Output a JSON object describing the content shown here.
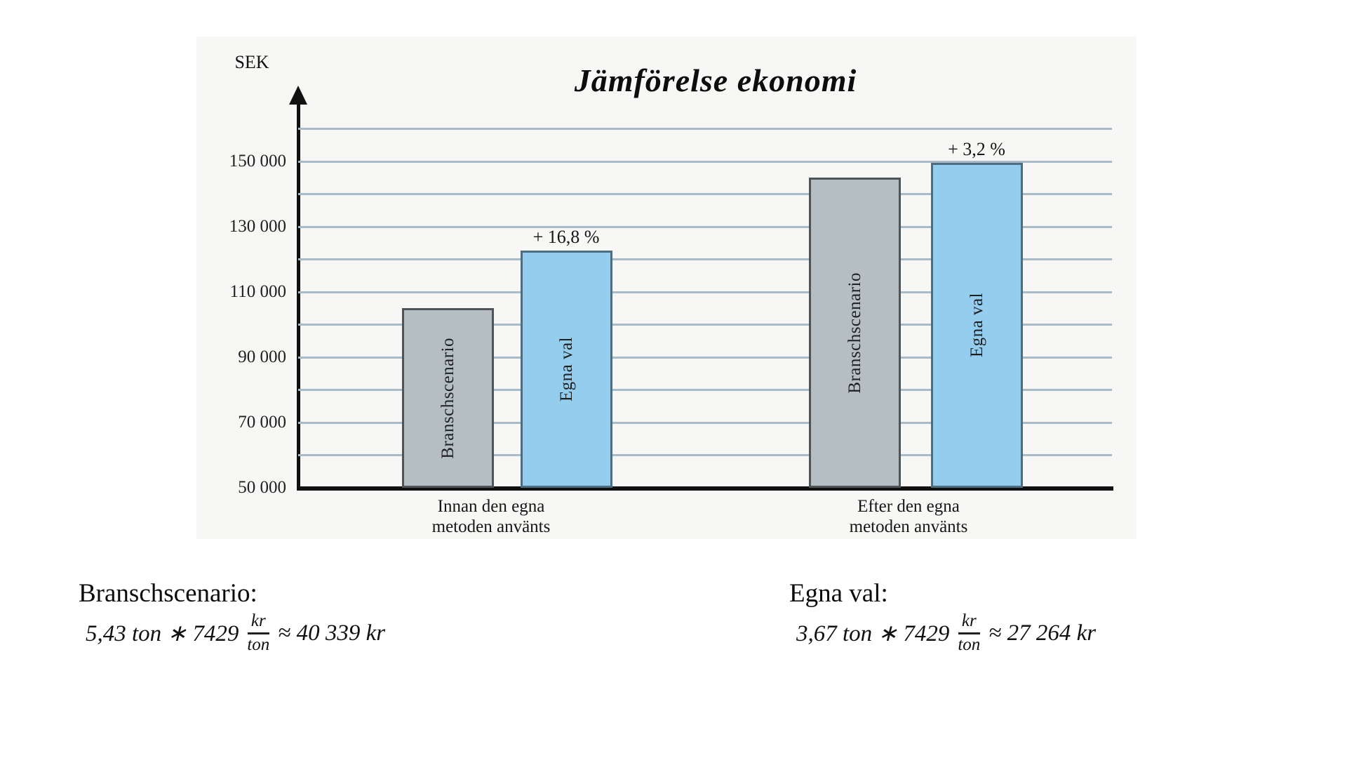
{
  "chart_data": {
    "type": "bar",
    "title": "Jämförelse ekonomi",
    "ylabel": "SEK",
    "xlabel": "",
    "categories": [
      "Innan den egna metoden använts",
      "Efter den egna metoden använts"
    ],
    "x_labels_lines": [
      [
        "Innan den egna",
        "metoden använts"
      ],
      [
        "Efter den egna",
        "metoden använts"
      ]
    ],
    "series": [
      {
        "name": "Branschscenario",
        "values": [
          105000,
          145000
        ],
        "color": "#b5bec2",
        "border": "#4f5456"
      },
      {
        "name": "Egna val",
        "values": [
          122600,
          149600
        ],
        "color": "#94cdee",
        "border": "#4d6d80"
      }
    ],
    "annotations": [
      "+ 16,8 %",
      "+ 3,2 %"
    ],
    "ylim": [
      50000,
      165000
    ],
    "gridline_step": 10000,
    "gridlines_max": 160000,
    "y_tick_values": [
      150000,
      130000,
      110000,
      90000,
      70000,
      50000
    ],
    "y_tick_labels": [
      "150 000",
      "130 000",
      "110 000",
      "90 000",
      "70 000",
      "50 000"
    ],
    "grid": "horizontal",
    "legend_position": "none"
  },
  "formulas": {
    "left": {
      "heading": "Branschscenario:",
      "lhs": "5,43 ton ∗ 7429",
      "frac_num": "kr",
      "frac_den": "ton",
      "rhs": "≈ 40 339 kr"
    },
    "right": {
      "heading": "Egna val:",
      "lhs": "3,67 ton ∗ 7429",
      "frac_num": "kr",
      "frac_den": "ton",
      "rhs": "≈ 27 264 kr"
    }
  },
  "colors": {
    "panel_bg": "#f7f8f5",
    "gridline": "#a9bbc7",
    "axis": "#111111",
    "text": "#1a1a1a"
  }
}
